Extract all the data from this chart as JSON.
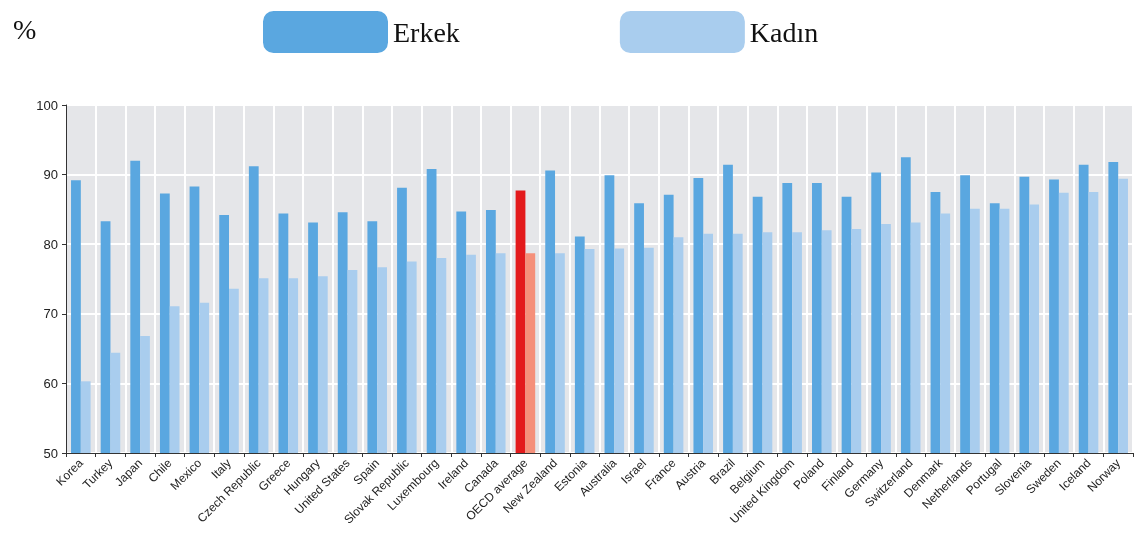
{
  "chart_data": {
    "type": "bar",
    "ylabel": "%",
    "categories": [
      "Korea",
      "Turkey",
      "Japan",
      "Chile",
      "Mexico",
      "Italy",
      "Czech Republic",
      "Greece",
      "Hungary",
      "United States",
      "Spain",
      "Slovak Republic",
      "Luxembourg",
      "Ireland",
      "Canada",
      "OECD average",
      "New Zealand",
      "Estonia",
      "Australia",
      "Israel",
      "France",
      "Austria",
      "Brazil",
      "Belgium",
      "United Kingdom",
      "Poland",
      "Finland",
      "Germany",
      "Switzerland",
      "Denmark",
      "Netherlands",
      "Portugal",
      "Slovenia",
      "Sweden",
      "Iceland",
      "Norway"
    ],
    "series": [
      {
        "name": "Erkek",
        "color": "#5aa7e0",
        "colors": [
          "#5aa7e0",
          "#5aa7e0",
          "#5aa7e0",
          "#5aa7e0",
          "#5aa7e0",
          "#5aa7e0",
          "#5aa7e0",
          "#5aa7e0",
          "#5aa7e0",
          "#5aa7e0",
          "#5aa7e0",
          "#5aa7e0",
          "#5aa7e0",
          "#5aa7e0",
          "#5aa7e0",
          "#e31a1c",
          "#5aa7e0",
          "#5aa7e0",
          "#5aa7e0",
          "#5aa7e0",
          "#5aa7e0",
          "#5aa7e0",
          "#5aa7e0",
          "#5aa7e0",
          "#5aa7e0",
          "#5aa7e0",
          "#5aa7e0",
          "#5aa7e0",
          "#5aa7e0",
          "#5aa7e0",
          "#5aa7e0",
          "#5aa7e0",
          "#5aa7e0",
          "#5aa7e0",
          "#5aa7e0",
          "#5aa7e0"
        ],
        "values": [
          89.2,
          83.3,
          92.0,
          87.3,
          88.3,
          84.2,
          91.2,
          84.4,
          83.1,
          84.6,
          83.3,
          88.1,
          90.8,
          84.7,
          84.9,
          87.7,
          90.6,
          81.1,
          89.9,
          85.9,
          87.1,
          89.5,
          91.4,
          86.8,
          88.8,
          88.8,
          86.8,
          90.3,
          92.5,
          87.5,
          89.9,
          85.9,
          89.7,
          89.3,
          91.4,
          91.8
        ]
      },
      {
        "name": "Kadın",
        "color": "#a9cdee",
        "colors": [
          "#a9cdee",
          "#a9cdee",
          "#a9cdee",
          "#a9cdee",
          "#a9cdee",
          "#a9cdee",
          "#a9cdee",
          "#a9cdee",
          "#a9cdee",
          "#a9cdee",
          "#a9cdee",
          "#a9cdee",
          "#a9cdee",
          "#a9cdee",
          "#a9cdee",
          "#f5907a",
          "#a9cdee",
          "#a9cdee",
          "#a9cdee",
          "#a9cdee",
          "#a9cdee",
          "#a9cdee",
          "#a9cdee",
          "#a9cdee",
          "#a9cdee",
          "#a9cdee",
          "#a9cdee",
          "#a9cdee",
          "#a9cdee",
          "#a9cdee",
          "#a9cdee",
          "#a9cdee",
          "#a9cdee",
          "#a9cdee",
          "#a9cdee",
          "#a9cdee"
        ],
        "values": [
          60.3,
          64.4,
          66.8,
          71.1,
          71.6,
          73.6,
          75.1,
          75.1,
          75.4,
          76.3,
          76.7,
          77.5,
          78.0,
          78.5,
          78.7,
          78.7,
          78.7,
          79.3,
          79.4,
          79.5,
          81.0,
          81.5,
          81.5,
          81.7,
          81.7,
          82.0,
          82.2,
          82.9,
          83.1,
          84.4,
          85.1,
          85.1,
          85.7,
          87.4,
          87.5,
          89.4
        ]
      }
    ],
    "ylim": [
      50,
      100
    ],
    "yticks": [
      50,
      60,
      70,
      80,
      90,
      100
    ],
    "grid": true,
    "legend": "top"
  }
}
